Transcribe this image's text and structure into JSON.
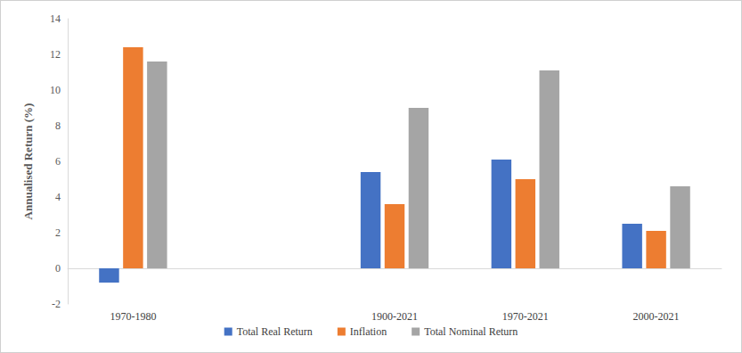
{
  "chart_data": {
    "type": "bar",
    "y_label": "Annualised Return (%)",
    "categories": [
      "1970-1980",
      null,
      "1900-2021",
      "1970-2021",
      "2000-2021"
    ],
    "series": [
      {
        "name": "Total Real Return",
        "color": "#4472c4",
        "values": [
          -0.8,
          null,
          5.4,
          6.1,
          2.5
        ]
      },
      {
        "name": "Inflation",
        "color": "#ed7d31",
        "values": [
          12.4,
          null,
          3.6,
          5.0,
          2.1
        ]
      },
      {
        "name": "Total Nominal Return",
        "color": "#a5a5a5",
        "values": [
          11.6,
          null,
          9.0,
          11.1,
          4.6
        ]
      }
    ],
    "ylim": [
      -2,
      14
    ],
    "yticks": [
      -2,
      0,
      2,
      4,
      6,
      8,
      10,
      12,
      14
    ],
    "grid": false,
    "legend": "bottom"
  }
}
